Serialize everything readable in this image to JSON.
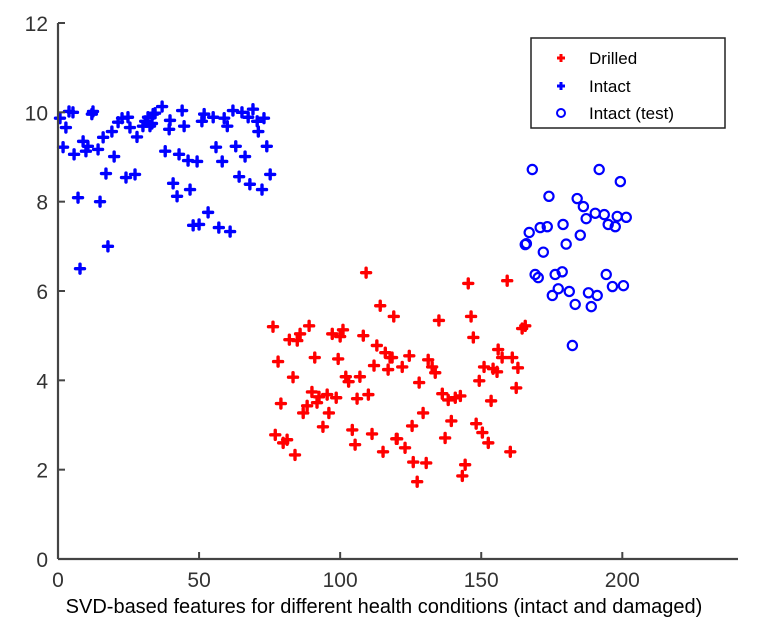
{
  "caption": "SVD-based features for different health conditions (intact and damaged)",
  "chart_data": {
    "type": "scatter",
    "title": "",
    "xlabel": "",
    "ylabel": "",
    "xlim": [
      0,
      241
    ],
    "ylim": [
      0,
      12
    ],
    "xticks": [
      0,
      50,
      100,
      150,
      200
    ],
    "yticks": [
      0,
      2,
      4,
      6,
      8,
      10,
      12
    ],
    "grid": false,
    "legend_position": "top-right",
    "series": [
      {
        "name": "Drilled",
        "marker": "plus-filled",
        "color": "#ff0000",
        "points": [
          [
            76.2,
            5.2
          ],
          [
            77.0,
            2.78
          ],
          [
            78.0,
            4.42
          ],
          [
            79.0,
            3.48
          ],
          [
            79.8,
            2.6
          ],
          [
            81.2,
            2.67
          ],
          [
            82.0,
            4.91
          ],
          [
            83.3,
            4.07
          ],
          [
            84.0,
            2.33
          ],
          [
            84.8,
            4.89
          ],
          [
            85.8,
            5.04
          ],
          [
            86.9,
            3.27
          ],
          [
            88.3,
            3.43
          ],
          [
            89.0,
            5.22
          ],
          [
            90.0,
            3.74
          ],
          [
            91.0,
            4.51
          ],
          [
            91.8,
            3.5
          ],
          [
            92.5,
            3.63
          ],
          [
            93.9,
            2.96
          ],
          [
            95.4,
            3.68
          ],
          [
            96.0,
            3.27
          ],
          [
            97.2,
            5.04
          ],
          [
            98.6,
            3.61
          ],
          [
            99.3,
            4.48
          ],
          [
            100.0,
            4.98
          ],
          [
            101.0,
            5.13
          ],
          [
            102.0,
            4.08
          ],
          [
            103.0,
            3.97
          ],
          [
            104.3,
            2.89
          ],
          [
            105.3,
            2.56
          ],
          [
            106.0,
            3.59
          ],
          [
            107.0,
            4.08
          ],
          [
            108.2,
            5.0
          ],
          [
            109.2,
            6.41
          ],
          [
            110.0,
            3.68
          ],
          [
            111.3,
            2.8
          ],
          [
            112.0,
            4.33
          ],
          [
            113.0,
            4.78
          ],
          [
            114.2,
            5.67
          ],
          [
            115.2,
            2.4
          ],
          [
            116.0,
            4.62
          ],
          [
            117.0,
            4.24
          ],
          [
            117.7,
            4.51
          ],
          [
            118.4,
            4.51
          ],
          [
            119.0,
            5.43
          ],
          [
            119.9,
            2.69
          ],
          [
            120.2,
            2.69
          ],
          [
            122.0,
            4.3
          ],
          [
            123.0,
            2.49
          ],
          [
            124.5,
            4.55
          ],
          [
            125.5,
            2.98
          ],
          [
            125.9,
            2.17
          ],
          [
            127.3,
            1.73
          ],
          [
            128.0,
            3.95
          ],
          [
            129.4,
            3.27
          ],
          [
            130.5,
            2.15
          ],
          [
            131.2,
            4.46
          ],
          [
            132.6,
            4.3
          ],
          [
            133.7,
            4.17
          ],
          [
            135.0,
            5.34
          ],
          [
            136.2,
            3.7
          ],
          [
            137.2,
            2.71
          ],
          [
            138.3,
            3.56
          ],
          [
            139.4,
            3.09
          ],
          [
            140.8,
            3.61
          ],
          [
            142.6,
            3.65
          ],
          [
            143.3,
            1.86
          ],
          [
            144.3,
            2.11
          ],
          [
            145.4,
            6.17
          ],
          [
            146.4,
            5.43
          ],
          [
            147.2,
            4.96
          ],
          [
            148.2,
            3.03
          ],
          [
            149.3,
            3.99
          ],
          [
            150.4,
            2.83
          ],
          [
            151.0,
            4.3
          ],
          [
            152.5,
            2.6
          ],
          [
            153.5,
            3.54
          ],
          [
            154.2,
            4.26
          ],
          [
            155.6,
            4.19
          ],
          [
            156.0,
            4.69
          ],
          [
            157.4,
            4.51
          ],
          [
            159.2,
            6.23
          ],
          [
            160.3,
            2.4
          ],
          [
            161.0,
            4.51
          ],
          [
            162.4,
            3.83
          ],
          [
            163.0,
            4.28
          ],
          [
            164.5,
            5.16
          ],
          [
            165.6,
            5.22
          ]
        ]
      },
      {
        "name": "Intact",
        "marker": "plus-filled",
        "color": "#0000ff",
        "points": [
          [
            0.7,
            9.87
          ],
          [
            1.8,
            9.22
          ],
          [
            2.8,
            9.66
          ],
          [
            3.9,
            10.02
          ],
          [
            5.3,
            10.0
          ],
          [
            5.7,
            9.06
          ],
          [
            7.1,
            8.09
          ],
          [
            7.8,
            6.5
          ],
          [
            8.9,
            9.35
          ],
          [
            9.9,
            9.13
          ],
          [
            10.6,
            9.24
          ],
          [
            12.0,
            9.96
          ],
          [
            12.4,
            10.02
          ],
          [
            14.2,
            9.17
          ],
          [
            14.9,
            8.0
          ],
          [
            16.0,
            9.44
          ],
          [
            17.0,
            8.63
          ],
          [
            17.7,
            7.0
          ],
          [
            19.1,
            9.57
          ],
          [
            19.9,
            9.01
          ],
          [
            21.3,
            9.78
          ],
          [
            22.7,
            9.87
          ],
          [
            24.1,
            8.54
          ],
          [
            24.8,
            9.89
          ],
          [
            25.5,
            9.66
          ],
          [
            27.3,
            8.61
          ],
          [
            28.0,
            9.45
          ],
          [
            30.1,
            9.69
          ],
          [
            30.9,
            9.8
          ],
          [
            31.9,
            9.89
          ],
          [
            32.6,
            9.69
          ],
          [
            33.3,
            9.75
          ],
          [
            33.7,
            9.96
          ],
          [
            34.4,
            9.98
          ],
          [
            36.9,
            10.13
          ],
          [
            38.0,
            9.13
          ],
          [
            39.4,
            9.62
          ],
          [
            39.7,
            9.82
          ],
          [
            40.8,
            8.41
          ],
          [
            42.2,
            8.12
          ],
          [
            42.9,
            9.06
          ],
          [
            44.0,
            10.04
          ],
          [
            44.7,
            9.69
          ],
          [
            46.1,
            8.92
          ],
          [
            46.8,
            8.27
          ],
          [
            47.9,
            7.47
          ],
          [
            49.3,
            8.9
          ],
          [
            50.0,
            7.49
          ],
          [
            51.0,
            9.8
          ],
          [
            51.8,
            9.96
          ],
          [
            53.2,
            7.76
          ],
          [
            55.0,
            9.89
          ],
          [
            56.0,
            9.22
          ],
          [
            57.0,
            7.42
          ],
          [
            58.2,
            8.9
          ],
          [
            58.9,
            9.87
          ],
          [
            60.0,
            9.69
          ],
          [
            61.0,
            7.33
          ],
          [
            62.0,
            10.04
          ],
          [
            63.0,
            9.24
          ],
          [
            64.2,
            8.56
          ],
          [
            65.2,
            10.0
          ],
          [
            66.3,
            9.01
          ],
          [
            67.4,
            9.89
          ],
          [
            68.0,
            8.39
          ],
          [
            69.1,
            10.07
          ],
          [
            70.6,
            9.8
          ],
          [
            71.0,
            9.57
          ],
          [
            72.3,
            8.27
          ],
          [
            73.0,
            9.87
          ],
          [
            74.0,
            9.24
          ],
          [
            75.2,
            8.61
          ]
        ]
      },
      {
        "name": "Intact (test)",
        "marker": "circle-open",
        "color": "#0000ff",
        "points": [
          [
            165.6,
            7.04
          ],
          [
            166.0,
            7.06
          ],
          [
            167.0,
            7.31
          ],
          [
            168.1,
            8.72
          ],
          [
            169.1,
            6.37
          ],
          [
            170.2,
            6.3
          ],
          [
            170.9,
            7.42
          ],
          [
            172.0,
            6.87
          ],
          [
            173.4,
            7.44
          ],
          [
            174.0,
            8.12
          ],
          [
            175.2,
            5.9
          ],
          [
            176.2,
            6.37
          ],
          [
            177.3,
            6.05
          ],
          [
            178.7,
            6.43
          ],
          [
            179.0,
            7.49
          ],
          [
            180.1,
            7.05
          ],
          [
            181.2,
            5.99
          ],
          [
            182.3,
            4.78
          ],
          [
            183.3,
            5.7
          ],
          [
            184.0,
            8.07
          ],
          [
            185.1,
            7.25
          ],
          [
            186.2,
            7.89
          ],
          [
            187.2,
            7.62
          ],
          [
            188.0,
            5.96
          ],
          [
            189.0,
            5.65
          ],
          [
            190.4,
            7.74
          ],
          [
            191.1,
            5.9
          ],
          [
            191.8,
            8.72
          ],
          [
            193.6,
            7.71
          ],
          [
            194.3,
            6.37
          ],
          [
            195.0,
            7.49
          ],
          [
            196.5,
            6.1
          ],
          [
            197.5,
            7.44
          ],
          [
            198.2,
            7.67
          ],
          [
            199.3,
            8.45
          ],
          [
            200.4,
            6.12
          ],
          [
            201.4,
            7.65
          ]
        ]
      }
    ]
  }
}
